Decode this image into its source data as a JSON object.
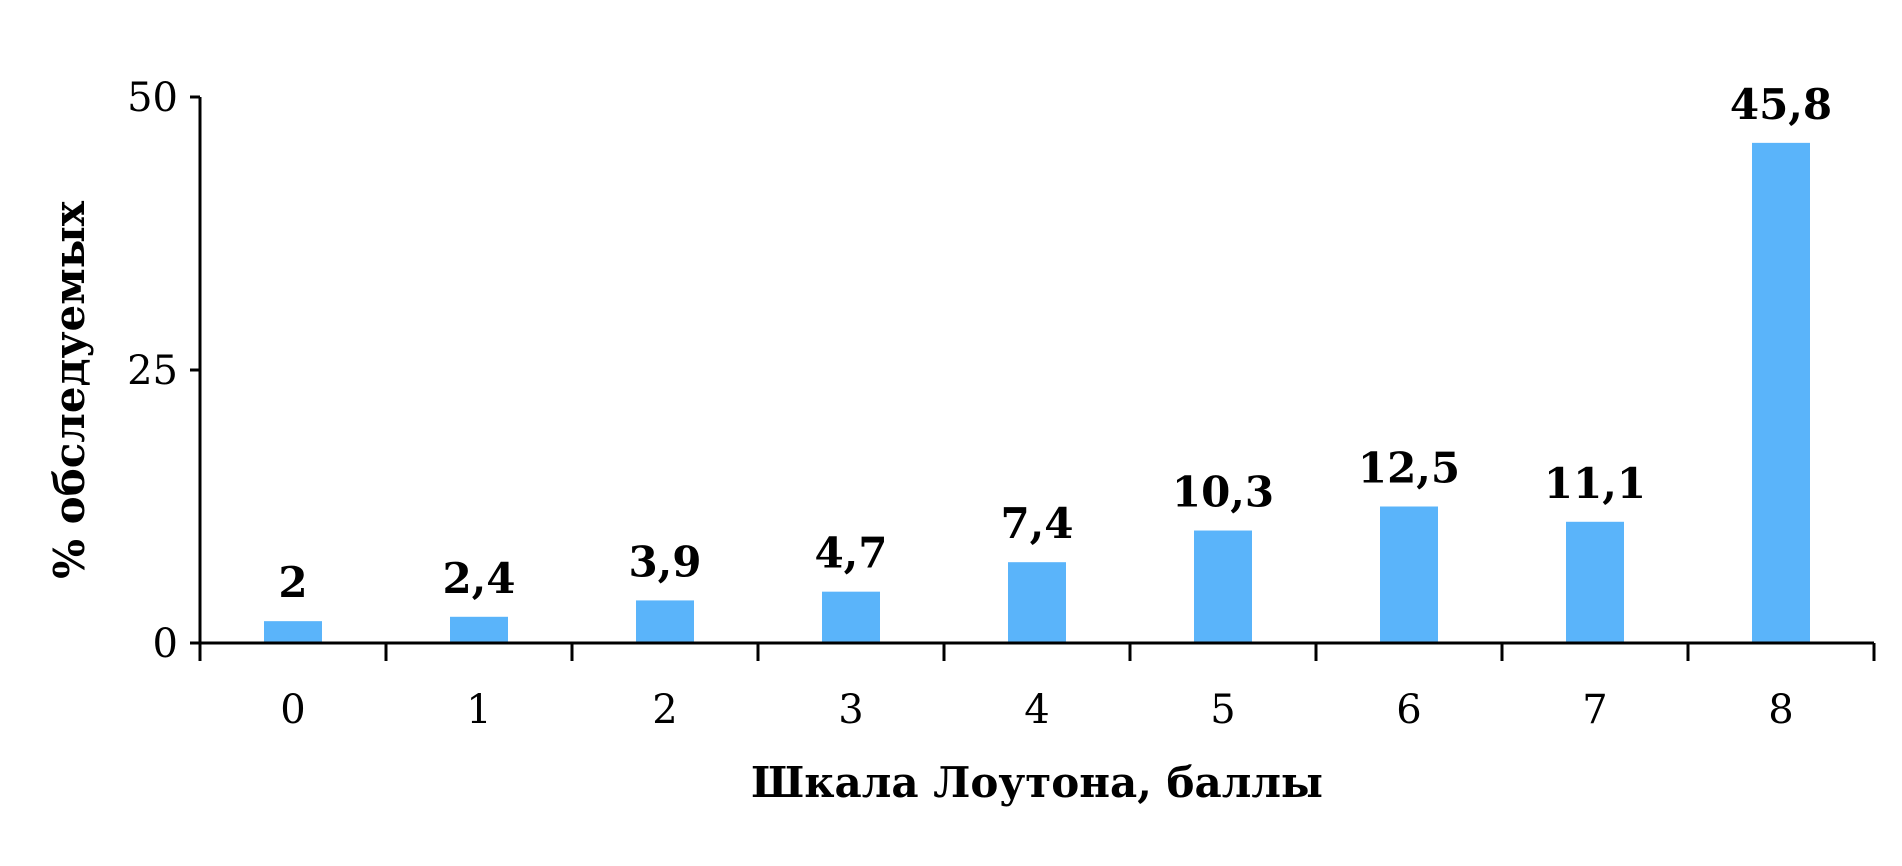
{
  "chart_data": {
    "type": "bar",
    "title": "",
    "xlabel": "Шкала Лоутона, баллы",
    "ylabel": "% обследуемых",
    "categories": [
      "0",
      "1",
      "2",
      "3",
      "4",
      "5",
      "6",
      "7",
      "8"
    ],
    "values": [
      2,
      2.4,
      3.9,
      4.7,
      7.4,
      10.3,
      12.5,
      11.1,
      45.8
    ],
    "data_labels": [
      "2",
      "2,4",
      "3,9",
      "4,7",
      "7,4",
      "10,3",
      "12,5",
      "11,1",
      "45,8"
    ],
    "ylim": [
      0,
      50
    ],
    "yticks": [
      0,
      25,
      50
    ],
    "ytick_labels": [
      "0",
      "25",
      "50"
    ],
    "grid": false,
    "legend": "none",
    "bar_color": "#5ab4fa",
    "axis_color": "#000000"
  }
}
